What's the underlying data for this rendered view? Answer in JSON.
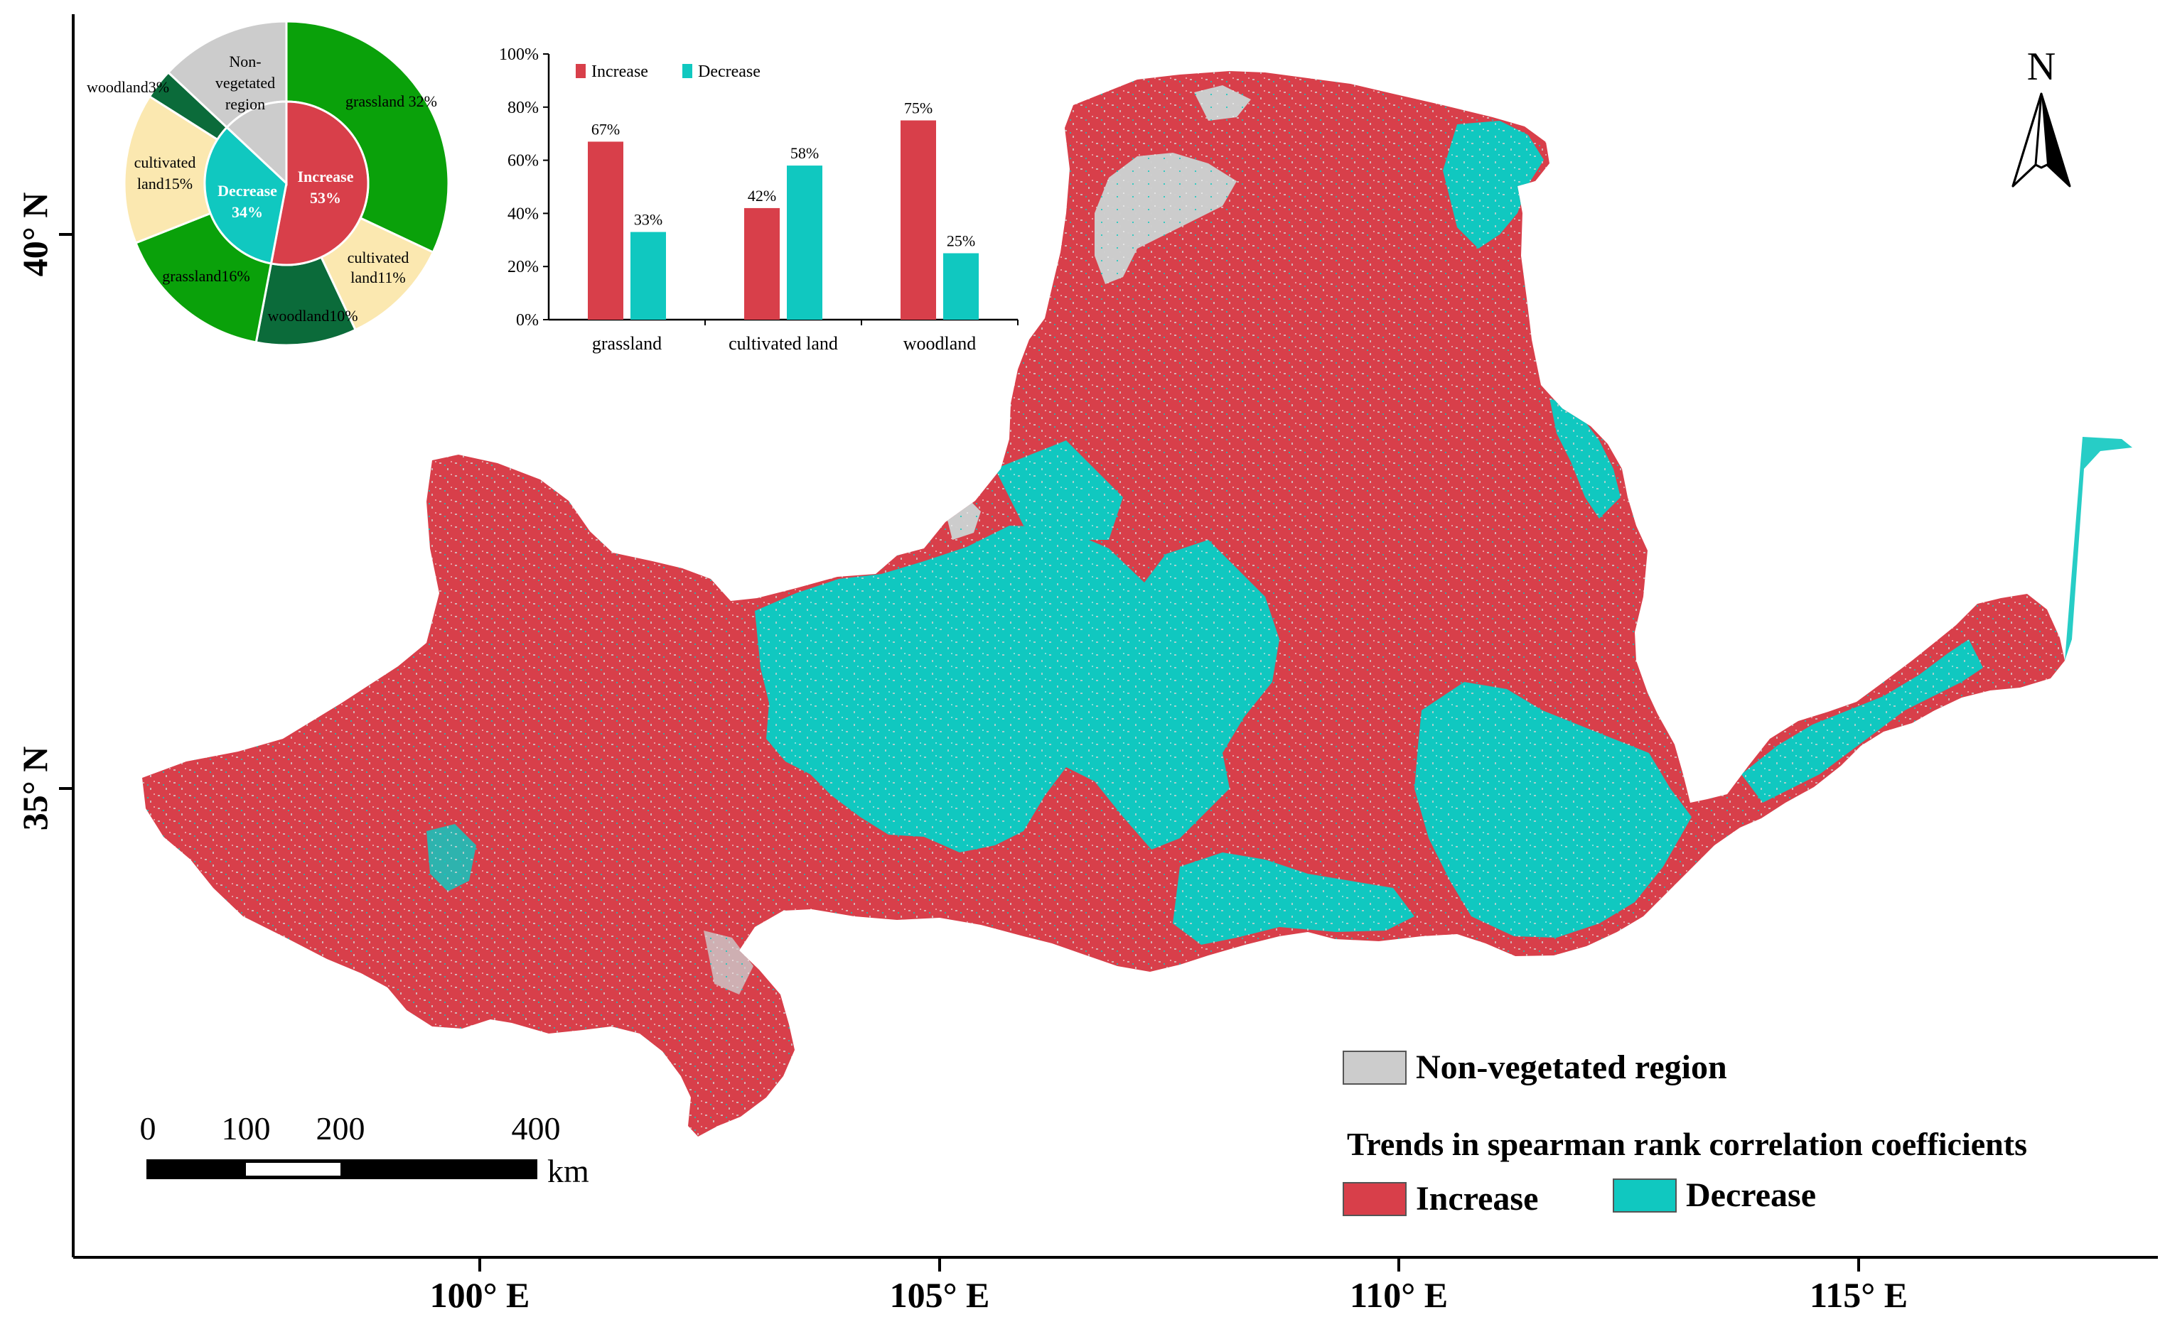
{
  "map": {
    "lat_labels": [
      "40° N",
      "35° N"
    ],
    "lon_labels": [
      "100° E",
      "105° E",
      "110° E",
      "115° E"
    ],
    "north_label": "N",
    "colors": {
      "increase": "#d83f4a",
      "decrease": "#10c8c0",
      "nonveg": "#cccccc",
      "grassland": "#0aa10a",
      "woodland": "#0b6b3a",
      "cultivated": "#fbe8b0"
    }
  },
  "scalebar": {
    "ticks": [
      "0",
      "100",
      "200",
      "400"
    ],
    "unit": "km"
  },
  "legend": {
    "nonveg_label": "Non-vegetated region",
    "title": "Trends in spearman rank correlation coefficients",
    "increase_label": "Increase",
    "decrease_label": "Decrease"
  },
  "chart_data": [
    {
      "type": "pie",
      "inner_ring": [
        {
          "label": "Increase",
          "value": 53,
          "text": "Increase 53%"
        },
        {
          "label": "Decrease",
          "value": 34,
          "text": "Decrease 34%"
        },
        {
          "label": "Non-vegetated region",
          "value": 13,
          "text": ""
        }
      ],
      "outer_ring": [
        {
          "label": "grassland",
          "value": 32,
          "text": "grassland 32%",
          "parent": "Increase"
        },
        {
          "label": "cultivated land",
          "value": 11,
          "text": "cultivated land11%",
          "parent": "Increase"
        },
        {
          "label": "woodland",
          "value": 10,
          "text": "woodland10%",
          "parent": "Increase"
        },
        {
          "label": "grassland",
          "value": 16,
          "text": "grassland16%",
          "parent": "Decrease"
        },
        {
          "label": "cultivated land",
          "value": 15,
          "text": "cultivated land15%",
          "parent": "Decrease"
        },
        {
          "label": "woodland",
          "value": 3,
          "text": "woodland3%",
          "parent": "Decrease"
        },
        {
          "label": "Non-vegetated region",
          "value": 13,
          "text": "Non-vegetated region",
          "parent": "Non-vegetated region"
        }
      ],
      "center_labels": {
        "increase_title": "Increase",
        "increase_pct": "53%",
        "decrease_title": "Decrease",
        "decrease_pct": "34%"
      },
      "outer_labels": {
        "grassland_inc": "grassland 32%",
        "cultivated_inc_1": "cultivated",
        "cultivated_inc_2": "land11%",
        "woodland_inc": "woodland10%",
        "grassland_dec": "grassland16%",
        "cultivated_dec_1": "cultivated",
        "cultivated_dec_2": "land15%",
        "woodland_dec": "woodland3%",
        "nonveg_1": "Non-",
        "nonveg_2": "vegetated",
        "nonveg_3": "region"
      }
    },
    {
      "type": "bar",
      "categories": [
        "grassland",
        "cultivated land",
        "woodland"
      ],
      "series": [
        {
          "name": "Increase",
          "values": [
            67,
            42,
            75
          ],
          "labels": [
            "67%",
            "42%",
            "75%"
          ]
        },
        {
          "name": "Decrease",
          "values": [
            33,
            58,
            25
          ],
          "labels": [
            "33%",
            "58%",
            "25%"
          ]
        }
      ],
      "ylim": [
        0,
        100
      ],
      "yticks": [
        "0%",
        "20%",
        "40%",
        "60%",
        "80%",
        "100%"
      ],
      "legend_position": "top-left"
    }
  ]
}
